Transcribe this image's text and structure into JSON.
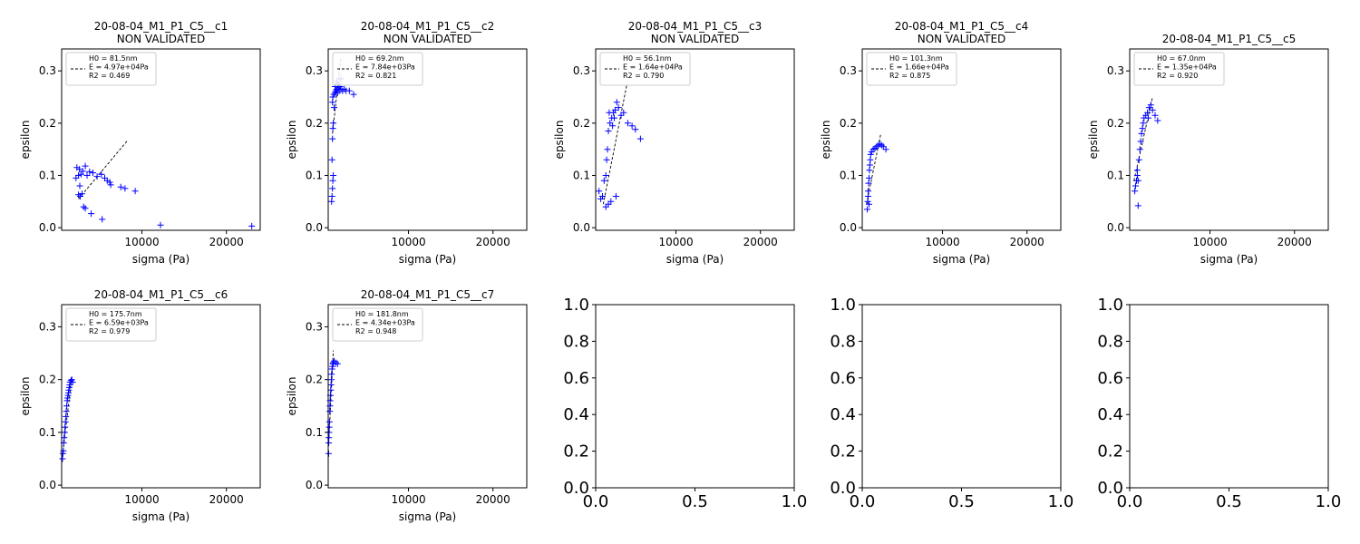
{
  "chart_data": [
    {
      "type": "scatter",
      "title": "20-08-04_M1_P1_C5__c1",
      "subtitle": "NON VALIDATED",
      "xlabel": "sigma (Pa)",
      "ylabel": "epsilon",
      "xlim": [
        500,
        24000
      ],
      "ylim": [
        -0.005,
        0.342
      ],
      "xticks": [
        10000,
        20000
      ],
      "xtick_labels": [
        "10000",
        "20000"
      ],
      "yticks": [
        0.0,
        0.1,
        0.2,
        0.3
      ],
      "ytick_labels": [
        "0.0",
        "0.1",
        "0.2",
        "0.3"
      ],
      "marker_color": "#0000ff",
      "fit_color": "#000000",
      "legend": {
        "placement": "upper-left",
        "lines": [
          "H0 = 81.5nm",
          "E = 4.97e+04Pa",
          "R2 = 0.469"
        ]
      },
      "points": [
        [
          2200,
          0.095
        ],
        [
          2300,
          0.115
        ],
        [
          2500,
          0.1
        ],
        [
          2600,
          0.112
        ],
        [
          2800,
          0.102
        ],
        [
          3000,
          0.108
        ],
        [
          3300,
          0.118
        ],
        [
          3500,
          0.1
        ],
        [
          3800,
          0.107
        ],
        [
          4200,
          0.105
        ],
        [
          4700,
          0.098
        ],
        [
          5200,
          0.102
        ],
        [
          2500,
          0.063
        ],
        [
          2700,
          0.06
        ],
        [
          2900,
          0.065
        ],
        [
          2650,
          0.08
        ],
        [
          3100,
          0.04
        ],
        [
          3300,
          0.037
        ],
        [
          4000,
          0.027
        ],
        [
          5300,
          0.016
        ],
        [
          5600,
          0.095
        ],
        [
          5900,
          0.09
        ],
        [
          6200,
          0.087
        ],
        [
          6300,
          0.082
        ],
        [
          7500,
          0.078
        ],
        [
          8000,
          0.075
        ],
        [
          9200,
          0.07
        ],
        [
          12200,
          0.005
        ],
        [
          23000,
          0.003
        ]
      ],
      "fit": [
        [
          2500,
          0.055
        ],
        [
          8300,
          0.167
        ]
      ]
    },
    {
      "type": "scatter",
      "title": "20-08-04_M1_P1_C5__c2",
      "subtitle": "NON VALIDATED",
      "xlabel": "sigma (Pa)",
      "ylabel": "epsilon",
      "xlim": [
        500,
        24000
      ],
      "ylim": [
        -0.005,
        0.342
      ],
      "xticks": [
        10000,
        20000
      ],
      "xtick_labels": [
        "10000",
        "20000"
      ],
      "yticks": [
        0.0,
        0.1,
        0.2,
        0.3
      ],
      "ytick_labels": [
        "0.0",
        "0.1",
        "0.2",
        "0.3"
      ],
      "marker_color": "#0000ff",
      "fit_color": "#000000",
      "legend": {
        "placement": "upper-left",
        "lines": [
          "H0 = 69.2nm",
          "E = 7.84e+03Pa",
          "R2 = 0.821"
        ]
      },
      "points": [
        [
          900,
          0.05
        ],
        [
          950,
          0.06
        ],
        [
          1000,
          0.075
        ],
        [
          1050,
          0.09
        ],
        [
          1100,
          0.1
        ],
        [
          950,
          0.13
        ],
        [
          1000,
          0.17
        ],
        [
          1050,
          0.19
        ],
        [
          1100,
          0.2
        ],
        [
          1000,
          0.24
        ],
        [
          1050,
          0.25
        ],
        [
          1150,
          0.255
        ],
        [
          1300,
          0.258
        ],
        [
          1400,
          0.262
        ],
        [
          1500,
          0.265
        ],
        [
          1600,
          0.258
        ],
        [
          1700,
          0.268
        ],
        [
          1800,
          0.262
        ],
        [
          1900,
          0.27
        ],
        [
          2000,
          0.265
        ],
        [
          2200,
          0.262
        ],
        [
          2400,
          0.265
        ],
        [
          2600,
          0.262
        ],
        [
          3000,
          0.262
        ],
        [
          3500,
          0.255
        ],
        [
          1200,
          0.23
        ],
        [
          1300,
          0.27
        ],
        [
          1500,
          0.28
        ],
        [
          1700,
          0.275
        ],
        [
          2000,
          0.285
        ]
      ],
      "fit": [
        [
          1000,
          0.18
        ],
        [
          2000,
          0.325
        ]
      ]
    },
    {
      "type": "scatter",
      "title": "20-08-04_M1_P1_C5__c3",
      "subtitle": "NON VALIDATED",
      "xlabel": "sigma (Pa)",
      "ylabel": "epsilon",
      "xlim": [
        500,
        24000
      ],
      "ylim": [
        -0.005,
        0.342
      ],
      "xticks": [
        10000,
        20000
      ],
      "xtick_labels": [
        "10000",
        "20000"
      ],
      "yticks": [
        0.0,
        0.1,
        0.2,
        0.3
      ],
      "ytick_labels": [
        "0.0",
        "0.1",
        "0.2",
        "0.3"
      ],
      "marker_color": "#0000ff",
      "fit_color": "#000000",
      "legend": {
        "placement": "upper-left",
        "lines": [
          "H0 = 56.1nm",
          "E = 1.64e+04Pa",
          "R2 = 0.790"
        ]
      },
      "points": [
        [
          900,
          0.07
        ],
        [
          1100,
          0.055
        ],
        [
          1300,
          0.06
        ],
        [
          1500,
          0.09
        ],
        [
          1700,
          0.1
        ],
        [
          1800,
          0.13
        ],
        [
          1900,
          0.15
        ],
        [
          2000,
          0.185
        ],
        [
          2200,
          0.2
        ],
        [
          2400,
          0.21
        ],
        [
          2600,
          0.22
        ],
        [
          2800,
          0.225
        ],
        [
          3000,
          0.24
        ],
        [
          3200,
          0.23
        ],
        [
          3500,
          0.215
        ],
        [
          3800,
          0.22
        ],
        [
          4300,
          0.2
        ],
        [
          4800,
          0.195
        ],
        [
          5200,
          0.188
        ],
        [
          5800,
          0.17
        ],
        [
          1700,
          0.04
        ],
        [
          2000,
          0.045
        ],
        [
          2300,
          0.05
        ],
        [
          2900,
          0.06
        ],
        [
          2100,
          0.22
        ],
        [
          2500,
          0.195
        ],
        [
          2700,
          0.21
        ]
      ],
      "fit": [
        [
          1400,
          0.045
        ],
        [
          4200,
          0.275
        ]
      ]
    },
    {
      "type": "scatter",
      "title": "20-08-04_M1_P1_C5__c4",
      "subtitle": "NON VALIDATED",
      "xlabel": "sigma (Pa)",
      "ylabel": "epsilon",
      "xlim": [
        500,
        24000
      ],
      "ylim": [
        -0.005,
        0.342
      ],
      "xticks": [
        10000,
        20000
      ],
      "xtick_labels": [
        "10000",
        "20000"
      ],
      "yticks": [
        0.0,
        0.1,
        0.2,
        0.3
      ],
      "ytick_labels": [
        "0.0",
        "0.1",
        "0.2",
        "0.3"
      ],
      "marker_color": "#0000ff",
      "fit_color": "#000000",
      "legend": {
        "placement": "upper-left",
        "lines": [
          "H0 = 101.3nm",
          "E = 1.66e+04Pa",
          "R2 = 0.875"
        ]
      },
      "points": [
        [
          1100,
          0.035
        ],
        [
          1150,
          0.05
        ],
        [
          1200,
          0.06
        ],
        [
          1200,
          0.07
        ],
        [
          1250,
          0.085
        ],
        [
          1300,
          0.095
        ],
        [
          1350,
          0.11
        ],
        [
          1400,
          0.12
        ],
        [
          1450,
          0.13
        ],
        [
          1500,
          0.14
        ],
        [
          1600,
          0.145
        ],
        [
          1800,
          0.15
        ],
        [
          2000,
          0.152
        ],
        [
          2200,
          0.155
        ],
        [
          2400,
          0.158
        ],
        [
          2600,
          0.16
        ],
        [
          2800,
          0.158
        ],
        [
          3000,
          0.155
        ],
        [
          3300,
          0.15
        ],
        [
          1300,
          0.045
        ]
      ],
      "fit": [
        [
          1000,
          0.045
        ],
        [
          2700,
          0.18
        ]
      ]
    },
    {
      "type": "scatter",
      "title": "20-08-04_M1_P1_C5__c5",
      "subtitle": "",
      "xlabel": "sigma (Pa)",
      "ylabel": "epsilon",
      "xlim": [
        500,
        24000
      ],
      "ylim": [
        -0.005,
        0.342
      ],
      "xticks": [
        10000,
        20000
      ],
      "xtick_labels": [
        "10000",
        "20000"
      ],
      "yticks": [
        0.0,
        0.1,
        0.2,
        0.3
      ],
      "ytick_labels": [
        "0.0",
        "0.1",
        "0.2",
        "0.3"
      ],
      "marker_color": "#0000ff",
      "fit_color": "#000000",
      "legend": {
        "placement": "upper-left",
        "lines": [
          "H0 = 67.0nm",
          "E = 1.35e+04Pa",
          "R2 = 0.920"
        ]
      },
      "points": [
        [
          1100,
          0.07
        ],
        [
          1200,
          0.08
        ],
        [
          1300,
          0.09
        ],
        [
          1400,
          0.1
        ],
        [
          1500,
          0.09
        ],
        [
          1400,
          0.11
        ],
        [
          1600,
          0.13
        ],
        [
          1700,
          0.15
        ],
        [
          1800,
          0.165
        ],
        [
          1900,
          0.18
        ],
        [
          2000,
          0.19
        ],
        [
          2100,
          0.2
        ],
        [
          2200,
          0.21
        ],
        [
          2400,
          0.215
        ],
        [
          2600,
          0.22
        ],
        [
          2800,
          0.23
        ],
        [
          3000,
          0.235
        ],
        [
          3200,
          0.225
        ],
        [
          3500,
          0.215
        ],
        [
          3800,
          0.205
        ],
        [
          1500,
          0.042
        ],
        [
          2700,
          0.21
        ]
      ],
      "fit": [
        [
          1000,
          0.09
        ],
        [
          3200,
          0.25
        ]
      ]
    },
    {
      "type": "scatter",
      "title": "20-08-04_M1_P1_C5__c6",
      "subtitle": "",
      "xlabel": "sigma (Pa)",
      "ylabel": "epsilon",
      "xlim": [
        500,
        24000
      ],
      "ylim": [
        -0.005,
        0.342
      ],
      "xticks": [
        10000,
        20000
      ],
      "xtick_labels": [
        "10000",
        "20000"
      ],
      "yticks": [
        0.0,
        0.1,
        0.2,
        0.3
      ],
      "ytick_labels": [
        "0.0",
        "0.1",
        "0.2",
        "0.3"
      ],
      "marker_color": "#0000ff",
      "fit_color": "#000000",
      "legend": {
        "placement": "upper-left",
        "lines": [
          "H0 = 175.7nm",
          "E = 6.59e+03Pa",
          "R2 = 0.979"
        ]
      },
      "points": [
        [
          600,
          0.05
        ],
        [
          650,
          0.06
        ],
        [
          700,
          0.065
        ],
        [
          750,
          0.08
        ],
        [
          800,
          0.09
        ],
        [
          850,
          0.1
        ],
        [
          900,
          0.11
        ],
        [
          950,
          0.12
        ],
        [
          1000,
          0.13
        ],
        [
          1050,
          0.14
        ],
        [
          1100,
          0.15
        ],
        [
          1150,
          0.16
        ],
        [
          1200,
          0.165
        ],
        [
          1250,
          0.17
        ],
        [
          1300,
          0.175
        ],
        [
          1350,
          0.18
        ],
        [
          1400,
          0.185
        ],
        [
          1450,
          0.19
        ],
        [
          1500,
          0.195
        ],
        [
          1600,
          0.198
        ],
        [
          1700,
          0.2
        ],
        [
          1800,
          0.195
        ]
      ],
      "fit": [
        [
          600,
          0.055
        ],
        [
          1700,
          0.205
        ]
      ]
    },
    {
      "type": "scatter",
      "title": "20-08-04_M1_P1_C5__c7",
      "subtitle": "",
      "xlabel": "sigma (Pa)",
      "ylabel": "epsilon",
      "xlim": [
        500,
        24000
      ],
      "ylim": [
        -0.005,
        0.342
      ],
      "xticks": [
        10000,
        20000
      ],
      "xtick_labels": [
        "10000",
        "20000"
      ],
      "yticks": [
        0.0,
        0.1,
        0.2,
        0.3
      ],
      "ytick_labels": [
        "0.0",
        "0.1",
        "0.2",
        "0.3"
      ],
      "marker_color": "#0000ff",
      "fit_color": "#000000",
      "legend": {
        "placement": "upper-left",
        "lines": [
          "H0 = 181.8nm",
          "E = 4.34e+03Pa",
          "R2 = 0.948"
        ]
      },
      "points": [
        [
          550,
          0.06
        ],
        [
          560,
          0.08
        ],
        [
          580,
          0.09
        ],
        [
          600,
          0.1
        ],
        [
          620,
          0.11
        ],
        [
          650,
          0.12
        ],
        [
          680,
          0.14
        ],
        [
          700,
          0.15
        ],
        [
          730,
          0.16
        ],
        [
          760,
          0.17
        ],
        [
          800,
          0.18
        ],
        [
          830,
          0.19
        ],
        [
          860,
          0.2
        ],
        [
          900,
          0.21
        ],
        [
          950,
          0.22
        ],
        [
          1000,
          0.225
        ],
        [
          1050,
          0.23
        ],
        [
          1100,
          0.232
        ],
        [
          1200,
          0.235
        ],
        [
          1400,
          0.232
        ],
        [
          1600,
          0.23
        ]
      ],
      "fit": [
        [
          600,
          0.09
        ],
        [
          1100,
          0.255
        ]
      ]
    },
    {
      "type": "empty",
      "xlim": [
        0.0,
        1.0
      ],
      "ylim": [
        0.0,
        1.0
      ],
      "xticks": [
        0.0,
        0.5,
        1.0
      ],
      "xtick_labels": [
        "0.0",
        "0.5",
        "1.0"
      ],
      "yticks": [
        0.0,
        0.2,
        0.4,
        0.6,
        0.8,
        1.0
      ],
      "ytick_labels": [
        "0.0",
        "0.2",
        "0.4",
        "0.6",
        "0.8",
        "1.0"
      ]
    },
    {
      "type": "empty",
      "xlim": [
        0.0,
        1.0
      ],
      "ylim": [
        0.0,
        1.0
      ],
      "xticks": [
        0.0,
        0.5,
        1.0
      ],
      "xtick_labels": [
        "0.0",
        "0.5",
        "1.0"
      ],
      "yticks": [
        0.0,
        0.2,
        0.4,
        0.6,
        0.8,
        1.0
      ],
      "ytick_labels": [
        "0.0",
        "0.2",
        "0.4",
        "0.6",
        "0.8",
        "1.0"
      ]
    },
    {
      "type": "empty",
      "xlim": [
        0.0,
        1.0
      ],
      "ylim": [
        0.0,
        1.0
      ],
      "xticks": [
        0.0,
        0.5,
        1.0
      ],
      "xtick_labels": [
        "0.0",
        "0.5",
        "1.0"
      ],
      "yticks": [
        0.0,
        0.2,
        0.4,
        0.6,
        0.8,
        1.0
      ],
      "ytick_labels": [
        "0.0",
        "0.2",
        "0.4",
        "0.6",
        "0.8",
        "1.0"
      ]
    }
  ]
}
